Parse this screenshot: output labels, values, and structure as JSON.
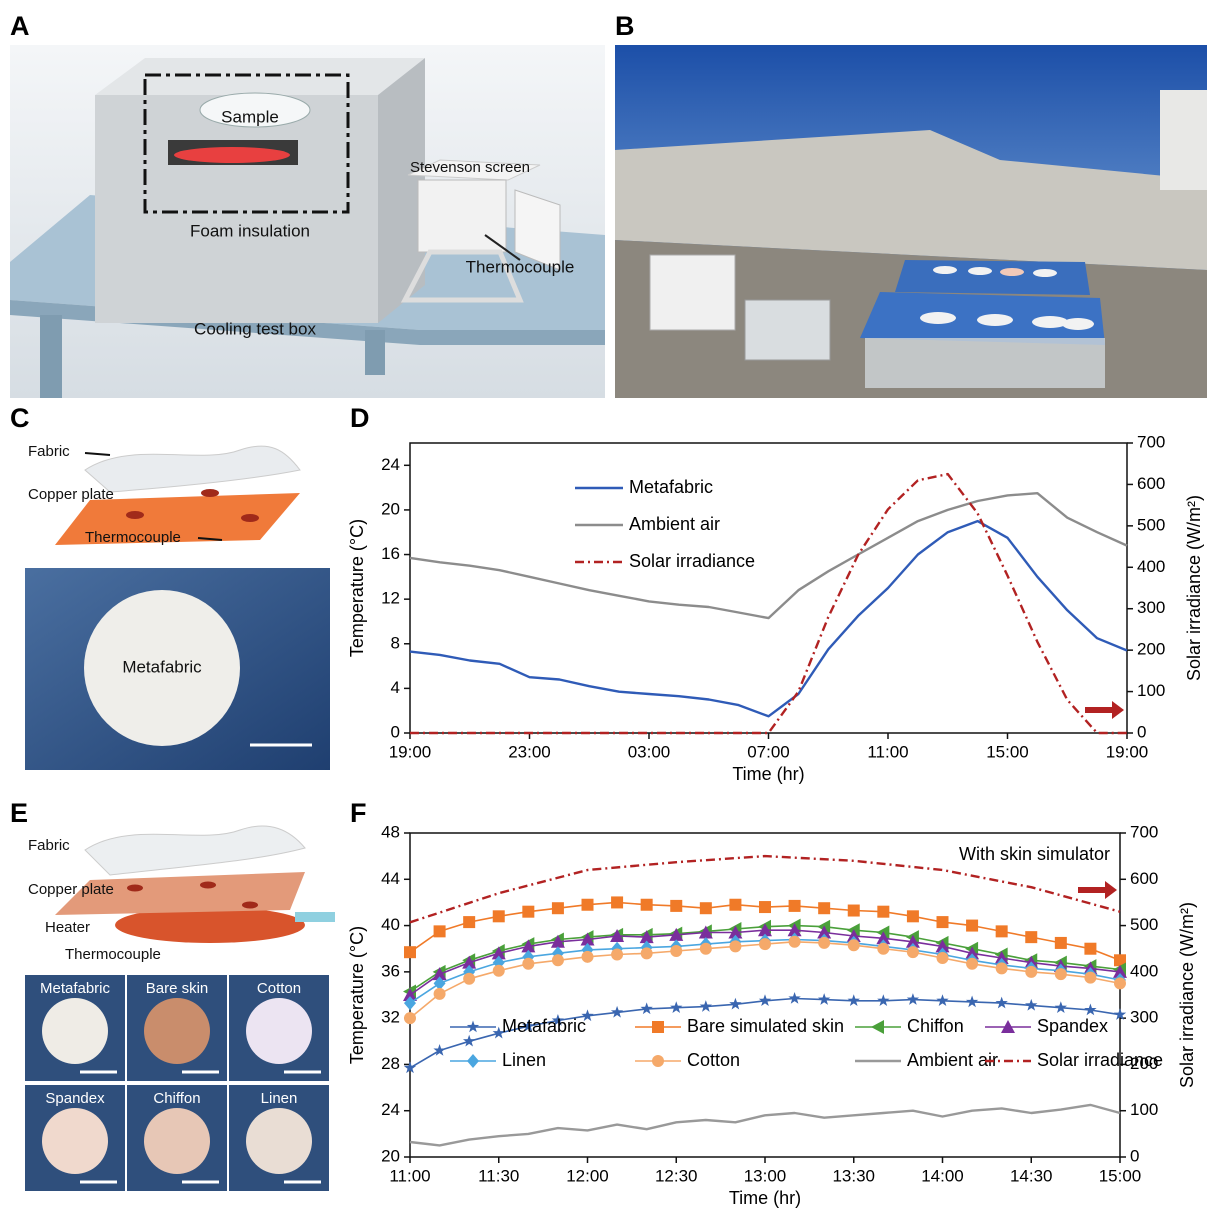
{
  "panel_labels": [
    "A",
    "B",
    "C",
    "D",
    "E",
    "F"
  ],
  "panel_a": {
    "sample": "Sample",
    "foam": "Foam insulation",
    "stevenson": "Stevenson screen",
    "thermocouple": "Thermocouple",
    "box": "Cooling test box"
  },
  "panel_c": {
    "fabric": "Fabric",
    "copper": "Copper plate",
    "thermocouple": "Thermocouple",
    "sample": "Metafabric"
  },
  "panel_e": {
    "fabric": "Fabric",
    "copper": "Copper plate",
    "heater": "Heater",
    "thermocouple": "Thermocouple",
    "samples": [
      "Metafabric",
      "Bare skin",
      "Cotton",
      "Spandex",
      "Chiffon",
      "Linen"
    ]
  },
  "chart_data": [
    {
      "type": "line",
      "xlabel": "Time (hr)",
      "ylabel": "Temperature (°C)",
      "y2label": "Solar irradiance (W/m²)",
      "x": [
        0,
        1,
        2,
        3,
        4,
        5,
        6,
        7,
        8,
        9,
        10,
        11,
        12,
        13,
        14,
        15,
        16,
        17,
        18,
        19,
        20,
        21,
        22,
        23,
        24
      ],
      "xlim": [
        0,
        24
      ],
      "xticks": [
        {
          "value": 0,
          "label": "19:00"
        },
        {
          "value": 4,
          "label": "23:00"
        },
        {
          "value": 8,
          "label": "03:00"
        },
        {
          "value": 12,
          "label": "07:00"
        },
        {
          "value": 16,
          "label": "11:00"
        },
        {
          "value": 20,
          "label": "15:00"
        },
        {
          "value": 24,
          "label": "19:00"
        }
      ],
      "ylim": [
        0,
        26
      ],
      "yticks": [
        0,
        4,
        8,
        12,
        16,
        20,
        24
      ],
      "y2lim": [
        0,
        700
      ],
      "y2ticks": [
        0,
        100,
        200,
        300,
        400,
        500,
        600,
        700
      ],
      "grid": false,
      "legend": "upper left",
      "series": [
        {
          "name": "Metafabric",
          "color": "#2f5bb7",
          "values": [
            7.3,
            7.0,
            6.5,
            6.2,
            5.0,
            4.8,
            4.2,
            3.7,
            3.5,
            3.3,
            3.0,
            2.5,
            1.5,
            3.5,
            7.5,
            10.5,
            13.0,
            16.0,
            18.0,
            19.0,
            17.5,
            14.0,
            11.0,
            8.5,
            7.4
          ]
        },
        {
          "name": "Ambient air",
          "color": "#8c8c8c",
          "values": [
            15.7,
            15.3,
            15.0,
            14.6,
            14.0,
            13.4,
            12.8,
            12.3,
            11.8,
            11.5,
            11.3,
            10.8,
            10.3,
            12.8,
            14.5,
            16.0,
            17.5,
            19.0,
            20.0,
            20.8,
            21.3,
            21.5,
            19.3,
            18.0,
            16.8
          ]
        },
        {
          "name": "Solar irradiance",
          "color": "#b22222",
          "dash": "dashdot",
          "axis": "y2",
          "values": [
            0,
            0,
            0,
            0,
            0,
            0,
            0,
            0,
            0,
            0,
            0,
            0,
            0,
            100,
            280,
            430,
            540,
            610,
            625,
            530,
            380,
            220,
            80,
            0,
            0
          ]
        }
      ]
    },
    {
      "type": "line",
      "xlabel": "Time (hr)",
      "ylabel": "Temperature (°C)",
      "y2label": "Solar irradiance (W/m²)",
      "annotation": "With skin simulator",
      "x": [
        0,
        10,
        20,
        30,
        40,
        50,
        60,
        70,
        80,
        90,
        100,
        110,
        120,
        130,
        140,
        150,
        160,
        170,
        180,
        190,
        200,
        210,
        220,
        230,
        240
      ],
      "xlim": [
        0,
        240
      ],
      "xticks": [
        {
          "value": 0,
          "label": "11:00"
        },
        {
          "value": 30,
          "label": "11:30"
        },
        {
          "value": 60,
          "label": "12:00"
        },
        {
          "value": 90,
          "label": "12:30"
        },
        {
          "value": 120,
          "label": "13:00"
        },
        {
          "value": 150,
          "label": "13:30"
        },
        {
          "value": 180,
          "label": "14:00"
        },
        {
          "value": 210,
          "label": "14:30"
        },
        {
          "value": 240,
          "label": "15:00"
        }
      ],
      "ylim": [
        20,
        48
      ],
      "yticks": [
        20,
        24,
        28,
        32,
        36,
        40,
        44,
        48
      ],
      "y2lim": [
        0,
        700
      ],
      "y2ticks": [
        0,
        100,
        200,
        300,
        400,
        500,
        600,
        700
      ],
      "grid": false,
      "legend": "lower center",
      "series": [
        {
          "name": "Metafabric",
          "color": "#3a66b0",
          "marker": "star",
          "values": [
            27.7,
            29.2,
            30.0,
            30.7,
            31.3,
            31.8,
            32.2,
            32.5,
            32.8,
            32.9,
            33.0,
            33.2,
            33.5,
            33.7,
            33.6,
            33.5,
            33.5,
            33.6,
            33.5,
            33.4,
            33.3,
            33.1,
            32.9,
            32.7,
            32.3
          ]
        },
        {
          "name": "Bare simulated skin",
          "color": "#f07a28",
          "marker": "square",
          "values": [
            37.7,
            39.5,
            40.3,
            40.8,
            41.2,
            41.5,
            41.8,
            42.0,
            41.8,
            41.7,
            41.5,
            41.8,
            41.6,
            41.7,
            41.5,
            41.3,
            41.2,
            40.8,
            40.3,
            40.0,
            39.5,
            39.0,
            38.5,
            38.0,
            37.0
          ]
        },
        {
          "name": "Chiffon",
          "color": "#4aa03a",
          "marker": "triangle-left",
          "values": [
            34.3,
            36.0,
            37.0,
            37.8,
            38.4,
            38.8,
            39.0,
            39.2,
            39.2,
            39.3,
            39.5,
            39.7,
            39.9,
            40.0,
            39.9,
            39.6,
            39.4,
            39.0,
            38.5,
            38.0,
            37.5,
            37.0,
            36.8,
            36.5,
            36.2
          ]
        },
        {
          "name": "Spandex",
          "color": "#7a2e9c",
          "marker": "triangle-up",
          "values": [
            34.0,
            35.8,
            36.8,
            37.6,
            38.2,
            38.6,
            38.8,
            39.1,
            39.0,
            39.2,
            39.4,
            39.4,
            39.6,
            39.6,
            39.4,
            39.1,
            38.9,
            38.6,
            38.2,
            37.6,
            37.2,
            36.8,
            36.5,
            36.3,
            36.0
          ]
        },
        {
          "name": "Linen",
          "color": "#4aa6e0",
          "marker": "diamond",
          "values": [
            33.3,
            35.0,
            36.0,
            36.8,
            37.3,
            37.6,
            37.9,
            38.0,
            38.1,
            38.2,
            38.4,
            38.6,
            38.7,
            38.8,
            38.7,
            38.5,
            38.2,
            37.9,
            37.5,
            37.0,
            36.6,
            36.3,
            36.1,
            35.8,
            35.3
          ]
        },
        {
          "name": "Cotton",
          "color": "#f5a96a",
          "marker": "circle",
          "values": [
            32.0,
            34.1,
            35.4,
            36.1,
            36.7,
            37.0,
            37.3,
            37.5,
            37.6,
            37.8,
            38.0,
            38.2,
            38.4,
            38.6,
            38.5,
            38.3,
            38.0,
            37.7,
            37.2,
            36.7,
            36.3,
            36.0,
            35.8,
            35.5,
            35.0
          ]
        },
        {
          "name": "Ambient air",
          "color": "#999999",
          "values": [
            21.3,
            21.0,
            21.5,
            21.8,
            22.0,
            22.5,
            22.3,
            22.8,
            22.4,
            23.0,
            23.2,
            23.0,
            23.6,
            23.8,
            23.4,
            23.6,
            23.8,
            24.0,
            23.5,
            24.0,
            24.2,
            23.8,
            24.1,
            24.5,
            23.8
          ]
        },
        {
          "name": "Solar irradiance",
          "color": "#b22222",
          "dash": "dashdot",
          "axis": "y2",
          "x": [
            0,
            30,
            60,
            90,
            120,
            150,
            180,
            210,
            240
          ],
          "values": [
            507,
            570,
            620,
            637,
            650,
            640,
            620,
            583,
            530
          ]
        }
      ]
    }
  ]
}
